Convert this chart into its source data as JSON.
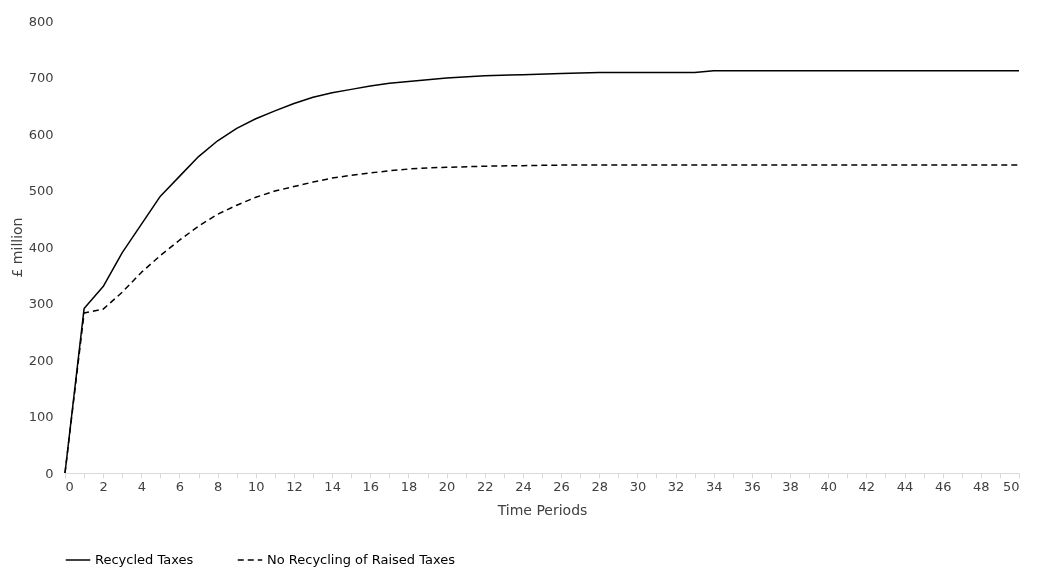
{
  "chart_data": {
    "type": "line",
    "xlabel": "Time Periods",
    "ylabel": "£ million",
    "xlim": [
      0,
      50
    ],
    "ylim": [
      0,
      800
    ],
    "xticks": [
      0,
      {
        "value": 1,
        "label": null
      },
      2,
      {
        "value": 3,
        "label": null
      },
      4,
      {
        "value": 5,
        "label": null
      },
      6,
      {
        "value": 7,
        "label": null
      },
      8,
      {
        "value": 9,
        "label": null
      },
      10,
      {
        "value": 11,
        "label": null
      },
      12,
      {
        "value": 13,
        "label": null
      },
      14,
      {
        "value": 15,
        "label": null
      },
      16,
      {
        "value": 17,
        "label": null
      },
      18,
      {
        "value": 19,
        "label": null
      },
      20,
      {
        "value": 21,
        "label": null
      },
      22,
      {
        "value": 23,
        "label": null
      },
      24,
      {
        "value": 25,
        "label": null
      },
      26,
      {
        "value": 27,
        "label": null
      },
      28,
      {
        "value": 29,
        "label": null
      },
      30,
      {
        "value": 31,
        "label": null
      },
      32,
      {
        "value": 33,
        "label": null
      },
      34,
      {
        "value": 35,
        "label": null
      },
      36,
      {
        "value": 37,
        "label": null
      },
      38,
      {
        "value": 39,
        "label": null
      },
      40,
      {
        "value": 41,
        "label": null
      },
      42,
      {
        "value": 43,
        "label": null
      },
      44,
      {
        "value": 45,
        "label": null
      },
      46,
      {
        "value": 47,
        "label": null
      },
      48,
      {
        "value": 49,
        "label": null
      },
      50
    ],
    "yticks": [
      0,
      100,
      200,
      300,
      400,
      500,
      600,
      700,
      800
    ],
    "grid": false,
    "legend": "bottom",
    "marker": "none",
    "series": [
      {
        "name": "Recycled Taxes",
        "color": "#000000",
        "line_style": "solid",
        "x": [
          0,
          1,
          2,
          3,
          4,
          5,
          6,
          7,
          8,
          9,
          10,
          11,
          12,
          13,
          14,
          15,
          16,
          17,
          18,
          19,
          20,
          22,
          24,
          26,
          28,
          33,
          34,
          50
        ],
        "values": [
          0,
          291,
          330,
          390,
          440,
          490,
          525,
          560,
          588,
          610,
          627,
          641,
          654,
          665,
          673,
          679,
          685,
          690,
          693,
          696,
          699,
          703,
          705,
          707,
          709,
          709,
          712,
          712
        ]
      },
      {
        "name": "No Recycling of Raised Taxes",
        "color": "#000000",
        "line_style": "dashed",
        "x": [
          0,
          1,
          2,
          3,
          4,
          5,
          6,
          7,
          8,
          9,
          10,
          11,
          12,
          13,
          14,
          15,
          16,
          17,
          18,
          19,
          20,
          22,
          24,
          26,
          50
        ],
        "values": [
          0,
          283,
          290,
          320,
          355,
          385,
          412,
          437,
          458,
          474,
          488,
          499,
          507,
          515,
          522,
          527,
          531,
          535,
          538,
          540,
          541,
          543,
          544,
          545,
          545
        ]
      }
    ]
  }
}
